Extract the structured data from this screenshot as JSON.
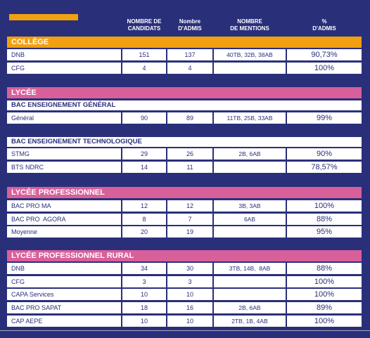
{
  "colors": {
    "background": "#2a2f7a",
    "college": "#f0a010",
    "lycee": "#d8609a",
    "text": "#2a2f7a"
  },
  "headers": {
    "candidats": "NOMBRE DE\nCANDIDATS",
    "admis": "Nombre\nD'ADMIS",
    "mentions": "NOMBRE\nDE MENTIONS",
    "pct": "%\nD'ADMIS"
  },
  "college": {
    "title": "COLLÈGE",
    "rows": [
      {
        "label": "DNB",
        "candidats": "151",
        "admis": "137",
        "mentions": "40TB, 32B, 38AB",
        "pct": "90,73%"
      },
      {
        "label": "CFG",
        "candidats": "4",
        "admis": "4",
        "mentions": "",
        "pct": "100%"
      }
    ]
  },
  "lycee": {
    "title": "LYCÉE",
    "general_title": "BAC ENSEIGNEMENT GÉNÉRAL",
    "general_rows": [
      {
        "label": "Général",
        "candidats": "90",
        "admis": "89",
        "mentions": "11TB, 25B, 33AB",
        "pct": "99%"
      }
    ],
    "techno_title": "BAC ENSEIGNEMENT TECHNOLOGIQUE",
    "techno_rows": [
      {
        "label": "STMG",
        "candidats": "29",
        "admis": "26",
        "mentions": "2B, 6AB",
        "pct": "90%"
      },
      {
        "label": "BTS NDRC",
        "candidats": "14",
        "admis": "11",
        "mentions": "",
        "pct": "78,57%"
      }
    ]
  },
  "lycee_pro": {
    "title": "LYCÉE PROFESSIONNEL",
    "rows": [
      {
        "label": "BAC PRO MA",
        "candidats": "12",
        "admis": "12",
        "mentions": "3B, 3AB",
        "pct": "100%"
      },
      {
        "label": "BAC PRO  AGORA",
        "candidats": "8",
        "admis": "7",
        "mentions": "6AB",
        "pct": "88%"
      },
      {
        "label": "Moyenne",
        "candidats": "20",
        "admis": "19",
        "mentions": "",
        "pct": "95%"
      }
    ]
  },
  "lycee_pro_rural": {
    "title": "LYCÉE PROFESSIONNEL RURAL",
    "rows": [
      {
        "label": "DNB",
        "candidats": "34",
        "admis": "30",
        "mentions": "3TB, 14B,  8AB",
        "pct": "88%"
      },
      {
        "label": "CFG",
        "candidats": "3",
        "admis": "3",
        "mentions": "",
        "pct": "100%"
      },
      {
        "label": "CAPA Services",
        "candidats": "10",
        "admis": "10",
        "mentions": "",
        "pct": "100%"
      },
      {
        "label": "BAC PRO SAPAT",
        "candidats": "18",
        "admis": "16",
        "mentions": "2B, 6AB",
        "pct": "89%"
      },
      {
        "label": "CAP AEPE",
        "candidats": "10",
        "admis": "10",
        "mentions": "2TB, 1B, 4AB",
        "pct": "100%"
      }
    ]
  }
}
